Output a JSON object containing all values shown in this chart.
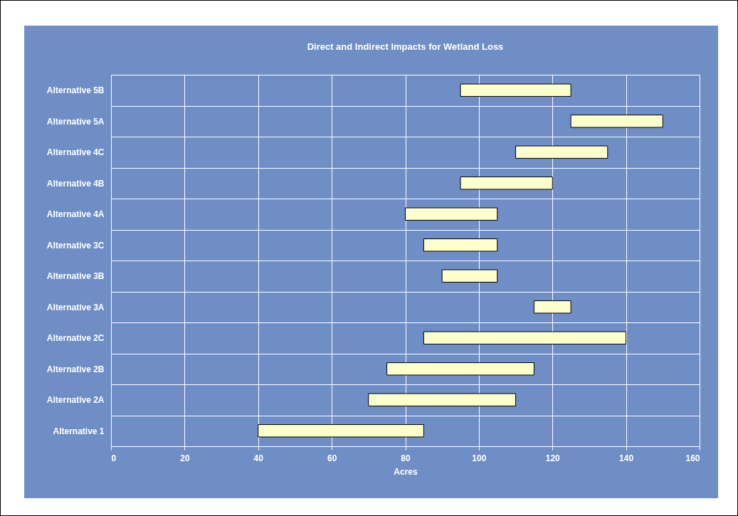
{
  "chart_data": {
    "type": "bar",
    "orientation": "horizontal",
    "title": "Direct and Indirect Impacts for Wetland Loss",
    "xlabel": "Acres",
    "categories": [
      "Alternative 5B",
      "Alternative 5A",
      "Alternative 4C",
      "Alternative 4B",
      "Alternative 4A",
      "Alternative 3C",
      "Alternative 3B",
      "Alternative 3A",
      "Alternative 2C",
      "Alternative 2B",
      "Alternative 2A",
      "Alternative 1"
    ],
    "base": [
      95,
      125,
      110,
      95,
      80,
      85,
      90,
      115,
      85,
      75,
      70,
      40
    ],
    "values": [
      30,
      25,
      25,
      25,
      25,
      20,
      15,
      10,
      55,
      40,
      40,
      45
    ],
    "color": "#ffffcc",
    "xlim": [
      0,
      160
    ],
    "xticks": [
      0,
      20,
      40,
      60,
      80,
      100,
      120,
      140,
      160
    ],
    "grid": true
  }
}
